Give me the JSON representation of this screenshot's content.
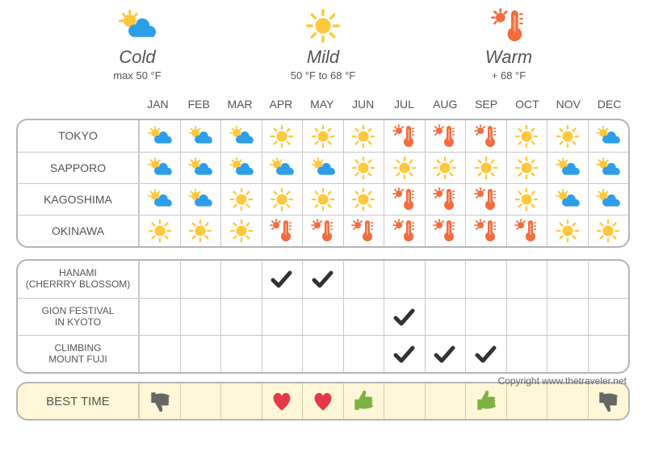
{
  "legend": {
    "cold": {
      "title": "Cold",
      "sub": "max 50 °F"
    },
    "mild": {
      "title": "Mild",
      "sub": "50 °F to 68 °F"
    },
    "warm": {
      "title": "Warm",
      "sub": "+ 68 °F"
    }
  },
  "months": [
    "JAN",
    "FEB",
    "MAR",
    "APR",
    "MAY",
    "JUN",
    "JUL",
    "AUG",
    "SEP",
    "OCT",
    "NOV",
    "DEC"
  ],
  "colors": {
    "cold_cloud": "#2d9eea",
    "cold_sun": "#ffc83d",
    "mild_sun": "#ffc83d",
    "warm_therm": "#f26c3e",
    "check": "#333333",
    "heart": "#e63946",
    "thumb_up": "#7cb342",
    "thumb_down": "#666666",
    "grid_border": "#b5b5b5",
    "grid_line": "#c9c9c9",
    "best_bg": "#fff7d8",
    "text": "#555555"
  },
  "climate_rows": [
    {
      "label": "TOKYO",
      "cells": [
        "cold",
        "cold",
        "cold",
        "mild",
        "mild",
        "mild",
        "warm",
        "warm",
        "warm",
        "mild",
        "mild",
        "cold"
      ]
    },
    {
      "label": "SAPPORO",
      "cells": [
        "cold",
        "cold",
        "cold",
        "cold",
        "cold",
        "mild",
        "mild",
        "mild",
        "mild",
        "mild",
        "cold",
        "cold"
      ]
    },
    {
      "label": "KAGOSHIMA",
      "cells": [
        "cold",
        "cold",
        "mild",
        "mild",
        "mild",
        "mild",
        "warm",
        "warm",
        "warm",
        "mild",
        "cold",
        "cold"
      ]
    },
    {
      "label": "OKINAWA",
      "cells": [
        "mild",
        "mild",
        "mild",
        "warm",
        "warm",
        "warm",
        "warm",
        "warm",
        "warm",
        "warm",
        "mild",
        "mild"
      ]
    }
  ],
  "event_rows": [
    {
      "label": "HANAMI\n(CHERRRY BLOSSOM)",
      "months": [
        4,
        5
      ]
    },
    {
      "label": "GION FESTIVAL\nIN KYOTO",
      "months": [
        7
      ]
    },
    {
      "label": "CLIMBING\nMOUNT FUJI",
      "months": [
        7,
        8,
        9
      ]
    }
  ],
  "best_row": {
    "label": "BEST TIME",
    "cells": [
      "thumb_down",
      "",
      "",
      "heart",
      "heart",
      "thumb_up",
      "",
      "",
      "thumb_up",
      "",
      "",
      "thumb_down"
    ]
  },
  "copyright": "Copyright www.thetraveler.net"
}
